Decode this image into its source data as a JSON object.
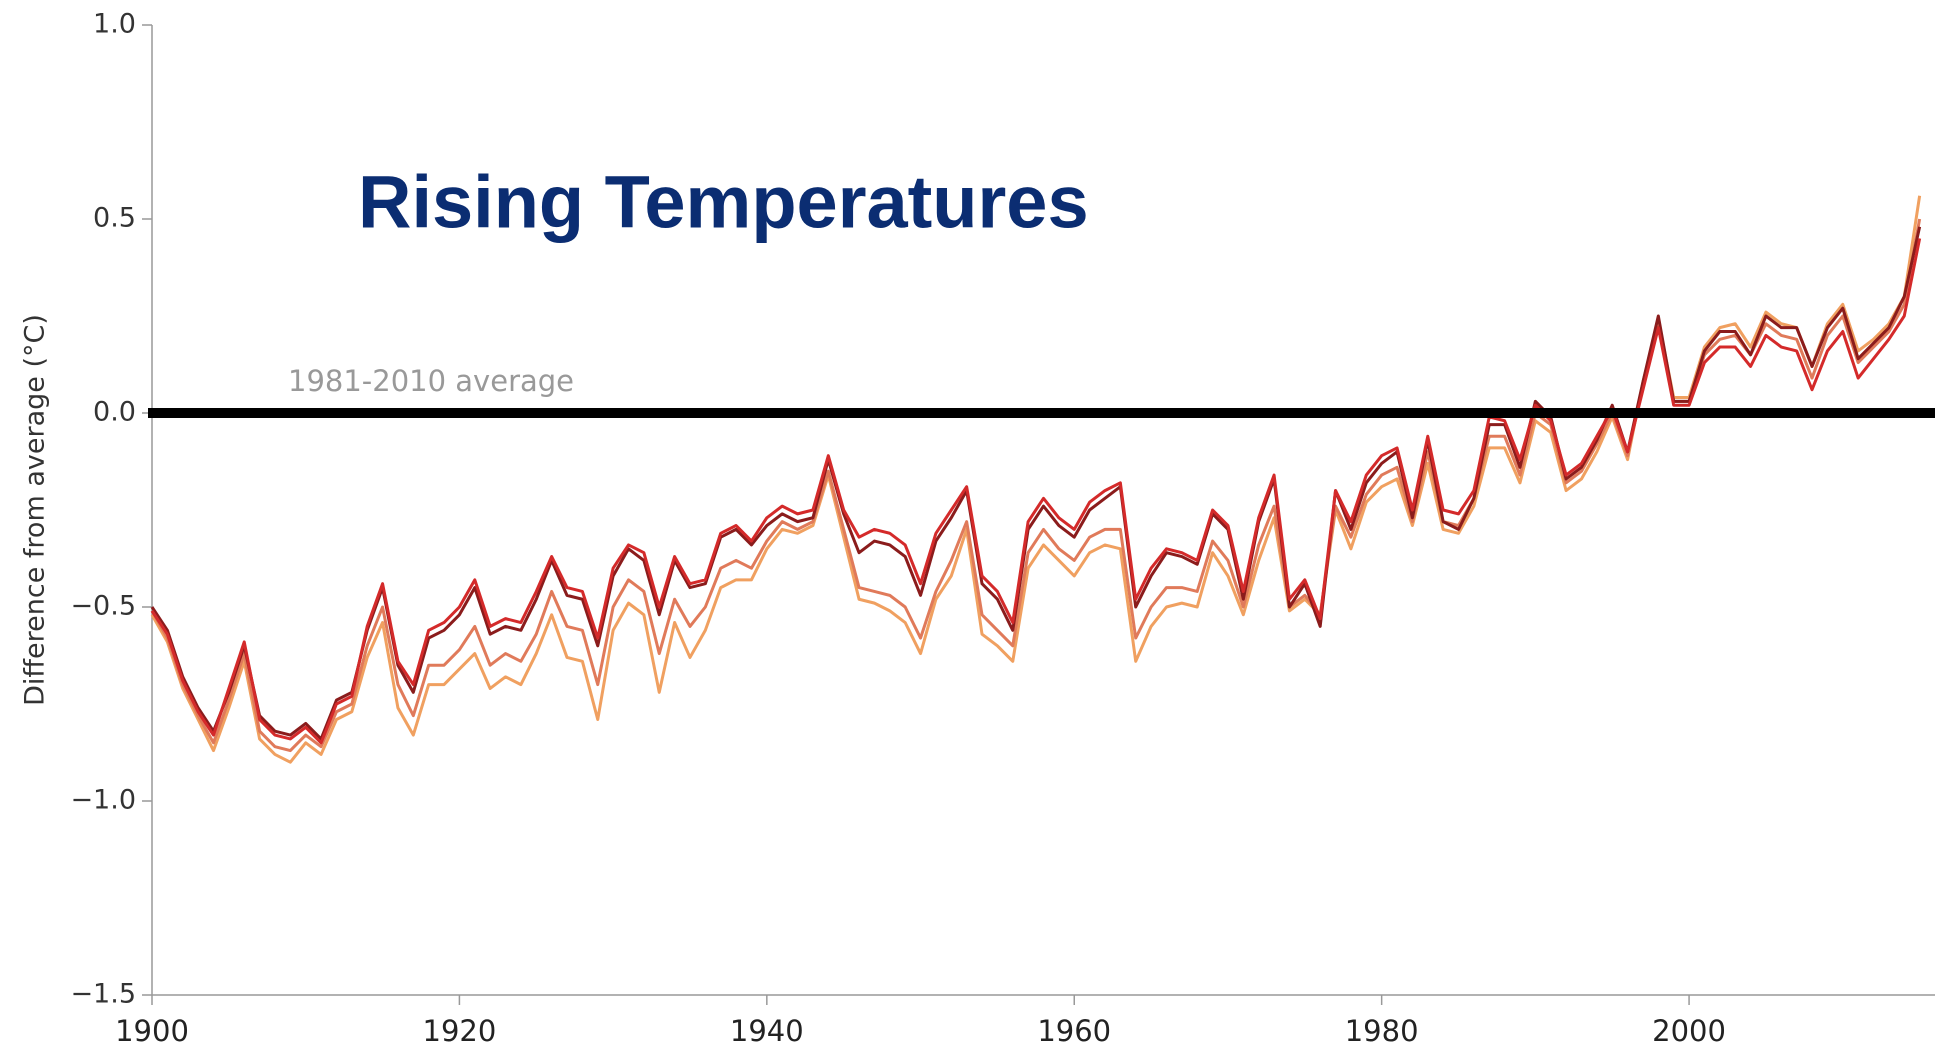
{
  "chart_data": {
    "type": "line",
    "title": "Rising Temperatures",
    "y_label": "Difference from average (°C)",
    "reference_line": {
      "value": 0,
      "label": "1981-2010 average",
      "color": "#000000"
    },
    "x": [
      1900,
      1901,
      1902,
      1903,
      1904,
      1905,
      1906,
      1907,
      1908,
      1909,
      1910,
      1911,
      1912,
      1913,
      1914,
      1915,
      1916,
      1917,
      1918,
      1919,
      1920,
      1921,
      1922,
      1923,
      1924,
      1925,
      1926,
      1927,
      1928,
      1929,
      1930,
      1931,
      1932,
      1933,
      1934,
      1935,
      1936,
      1937,
      1938,
      1939,
      1940,
      1941,
      1942,
      1943,
      1944,
      1945,
      1946,
      1947,
      1948,
      1949,
      1950,
      1951,
      1952,
      1953,
      1954,
      1955,
      1956,
      1957,
      1958,
      1959,
      1960,
      1961,
      1962,
      1963,
      1964,
      1965,
      1966,
      1967,
      1968,
      1969,
      1970,
      1971,
      1972,
      1973,
      1974,
      1975,
      1976,
      1977,
      1978,
      1979,
      1980,
      1981,
      1982,
      1983,
      1984,
      1985,
      1986,
      1987,
      1988,
      1989,
      1990,
      1991,
      1992,
      1993,
      1994,
      1995,
      1996,
      1997,
      1998,
      1999,
      2000,
      2001,
      2002,
      2003,
      2004,
      2005,
      2006,
      2007,
      2008,
      2009,
      2010,
      2011,
      2012,
      2013,
      2014,
      2015
    ],
    "series": [
      {
        "color": "#f0a060",
        "values": [
          -0.52,
          -0.59,
          -0.71,
          -0.79,
          -0.87,
          -0.76,
          -0.64,
          -0.84,
          -0.88,
          -0.9,
          -0.85,
          -0.88,
          -0.79,
          -0.77,
          -0.63,
          -0.54,
          -0.76,
          -0.83,
          -0.7,
          -0.7,
          -0.66,
          -0.62,
          -0.71,
          -0.68,
          -0.7,
          -0.62,
          -0.52,
          -0.63,
          -0.64,
          -0.79,
          -0.56,
          -0.49,
          -0.52,
          -0.72,
          -0.54,
          -0.63,
          -0.56,
          -0.45,
          -0.43,
          -0.43,
          -0.35,
          -0.3,
          -0.31,
          -0.29,
          -0.16,
          -0.32,
          -0.48,
          -0.49,
          -0.51,
          -0.54,
          -0.62,
          -0.48,
          -0.42,
          -0.3,
          -0.57,
          -0.6,
          -0.64,
          -0.4,
          -0.34,
          -0.38,
          -0.42,
          -0.36,
          -0.34,
          -0.35,
          -0.64,
          -0.55,
          -0.5,
          -0.49,
          -0.5,
          -0.36,
          -0.42,
          -0.52,
          -0.38,
          -0.27,
          -0.51,
          -0.48,
          -0.52,
          -0.25,
          -0.35,
          -0.23,
          -0.19,
          -0.17,
          -0.29,
          -0.13,
          -0.3,
          -0.31,
          -0.24,
          -0.09,
          -0.09,
          -0.18,
          -0.02,
          -0.05,
          -0.2,
          -0.17,
          -0.1,
          -0.01,
          -0.12,
          0.08,
          0.24,
          0.04,
          0.04,
          0.17,
          0.22,
          0.23,
          0.17,
          0.26,
          0.23,
          0.22,
          0.12,
          0.23,
          0.28,
          0.16,
          0.19,
          0.23,
          0.3,
          0.56
        ]
      },
      {
        "color": "#e07a5a",
        "values": [
          -0.51,
          -0.58,
          -0.7,
          -0.78,
          -0.85,
          -0.74,
          -0.62,
          -0.82,
          -0.86,
          -0.87,
          -0.83,
          -0.86,
          -0.77,
          -0.75,
          -0.6,
          -0.5,
          -0.7,
          -0.78,
          -0.65,
          -0.65,
          -0.61,
          -0.55,
          -0.65,
          -0.62,
          -0.64,
          -0.57,
          -0.46,
          -0.55,
          -0.56,
          -0.7,
          -0.5,
          -0.43,
          -0.46,
          -0.62,
          -0.48,
          -0.55,
          -0.5,
          -0.4,
          -0.38,
          -0.4,
          -0.33,
          -0.28,
          -0.3,
          -0.28,
          -0.15,
          -0.3,
          -0.45,
          -0.46,
          -0.47,
          -0.5,
          -0.58,
          -0.46,
          -0.38,
          -0.28,
          -0.52,
          -0.56,
          -0.6,
          -0.36,
          -0.3,
          -0.35,
          -0.38,
          -0.32,
          -0.3,
          -0.3,
          -0.58,
          -0.5,
          -0.45,
          -0.45,
          -0.46,
          -0.33,
          -0.38,
          -0.5,
          -0.34,
          -0.24,
          -0.5,
          -0.47,
          -0.52,
          -0.24,
          -0.32,
          -0.21,
          -0.16,
          -0.14,
          -0.28,
          -0.1,
          -0.28,
          -0.29,
          -0.22,
          -0.06,
          -0.06,
          -0.16,
          0.0,
          -0.03,
          -0.18,
          -0.15,
          -0.08,
          0.0,
          -0.11,
          0.07,
          0.23,
          0.03,
          0.03,
          0.15,
          0.19,
          0.2,
          0.15,
          0.23,
          0.2,
          0.19,
          0.09,
          0.2,
          0.25,
          0.13,
          0.17,
          0.21,
          0.28,
          0.5
        ]
      },
      {
        "color": "#8b1c1c",
        "values": [
          -0.5,
          -0.56,
          -0.68,
          -0.76,
          -0.82,
          -0.72,
          -0.6,
          -0.78,
          -0.82,
          -0.83,
          -0.8,
          -0.84,
          -0.74,
          -0.72,
          -0.56,
          -0.45,
          -0.65,
          -0.72,
          -0.58,
          -0.56,
          -0.52,
          -0.45,
          -0.57,
          -0.55,
          -0.56,
          -0.48,
          -0.38,
          -0.47,
          -0.48,
          -0.6,
          -0.42,
          -0.35,
          -0.38,
          -0.52,
          -0.38,
          -0.45,
          -0.44,
          -0.32,
          -0.3,
          -0.34,
          -0.29,
          -0.26,
          -0.28,
          -0.27,
          -0.12,
          -0.26,
          -0.36,
          -0.33,
          -0.34,
          -0.37,
          -0.47,
          -0.33,
          -0.27,
          -0.2,
          -0.44,
          -0.48,
          -0.56,
          -0.3,
          -0.24,
          -0.29,
          -0.32,
          -0.25,
          -0.22,
          -0.19,
          -0.5,
          -0.42,
          -0.36,
          -0.37,
          -0.39,
          -0.26,
          -0.3,
          -0.48,
          -0.28,
          -0.17,
          -0.5,
          -0.44,
          -0.55,
          -0.2,
          -0.3,
          -0.18,
          -0.13,
          -0.1,
          -0.27,
          -0.07,
          -0.28,
          -0.3,
          -0.22,
          -0.03,
          -0.03,
          -0.14,
          0.03,
          -0.01,
          -0.17,
          -0.14,
          -0.07,
          0.02,
          -0.1,
          0.08,
          0.25,
          0.03,
          0.03,
          0.16,
          0.21,
          0.21,
          0.15,
          0.25,
          0.22,
          0.22,
          0.12,
          0.22,
          0.27,
          0.14,
          0.18,
          0.22,
          0.3,
          0.48
        ]
      },
      {
        "color": "#d42a2a",
        "values": [
          -0.51,
          -0.57,
          -0.69,
          -0.77,
          -0.83,
          -0.71,
          -0.59,
          -0.79,
          -0.83,
          -0.84,
          -0.81,
          -0.85,
          -0.75,
          -0.73,
          -0.55,
          -0.44,
          -0.64,
          -0.7,
          -0.56,
          -0.54,
          -0.5,
          -0.43,
          -0.55,
          -0.53,
          -0.54,
          -0.46,
          -0.37,
          -0.45,
          -0.46,
          -0.58,
          -0.4,
          -0.34,
          -0.36,
          -0.5,
          -0.37,
          -0.44,
          -0.43,
          -0.31,
          -0.29,
          -0.33,
          -0.27,
          -0.24,
          -0.26,
          -0.25,
          -0.11,
          -0.25,
          -0.32,
          -0.3,
          -0.31,
          -0.34,
          -0.44,
          -0.31,
          -0.25,
          -0.19,
          -0.42,
          -0.46,
          -0.54,
          -0.28,
          -0.22,
          -0.27,
          -0.3,
          -0.23,
          -0.2,
          -0.18,
          -0.48,
          -0.4,
          -0.35,
          -0.36,
          -0.38,
          -0.25,
          -0.29,
          -0.46,
          -0.27,
          -0.16,
          -0.48,
          -0.43,
          -0.53,
          -0.2,
          -0.28,
          -0.16,
          -0.11,
          -0.09,
          -0.25,
          -0.06,
          -0.25,
          -0.26,
          -0.2,
          -0.01,
          -0.02,
          -0.12,
          0.02,
          -0.02,
          -0.16,
          -0.13,
          -0.06,
          0.01,
          -0.1,
          0.06,
          0.22,
          0.02,
          0.02,
          0.13,
          0.17,
          0.17,
          0.12,
          0.2,
          0.17,
          0.16,
          0.06,
          0.16,
          0.21,
          0.09,
          0.14,
          0.19,
          0.25,
          0.45
        ]
      }
    ],
    "xlim": [
      1900,
      2016
    ],
    "xticks": [
      1900,
      1920,
      1940,
      1960,
      1980,
      2000
    ],
    "ylim": [
      -1.5,
      1.0
    ],
    "yticks": [
      {
        "value": -1.5,
        "label": "−1.5"
      },
      {
        "value": -1.0,
        "label": "−1.0"
      },
      {
        "value": -0.5,
        "label": "−0.5"
      },
      {
        "value": 0,
        "label": "0.0"
      },
      0.5,
      {
        "value": 1.0,
        "label": "1.0"
      }
    ]
  }
}
